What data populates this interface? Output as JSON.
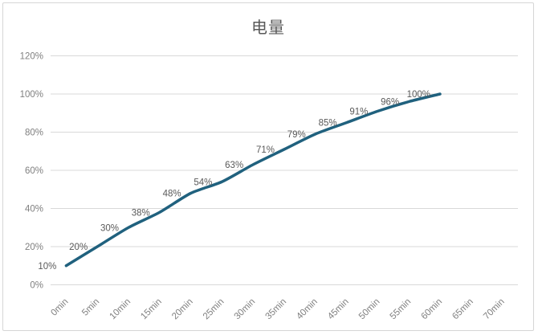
{
  "chart_data": {
    "type": "line",
    "title": "电量",
    "categories": [
      "0min",
      "5min",
      "10min",
      "15min",
      "20min",
      "25min",
      "30min",
      "35min",
      "40min",
      "45min",
      "50min",
      "55min",
      "60min",
      "65min",
      "70min"
    ],
    "series": [
      {
        "name": "电量",
        "values": [
          10,
          20,
          30,
          38,
          48,
          54,
          63,
          71,
          79,
          85,
          91,
          96,
          100
        ],
        "data_labels": [
          "10%",
          "20%",
          "30%",
          "38%",
          "48%",
          "54%",
          "63%",
          "71%",
          "79%",
          "85%",
          "91%",
          "96%",
          "100%"
        ]
      }
    ],
    "xlabel": "",
    "ylabel": "",
    "ylim": [
      0,
      120
    ],
    "y_ticks": [
      0,
      20,
      40,
      60,
      80,
      100,
      120
    ],
    "y_tick_labels": [
      "0%",
      "20%",
      "40%",
      "60%",
      "80%",
      "100%",
      "120%"
    ],
    "grid": true,
    "legend": "none",
    "data_label_position": "left",
    "colors": {
      "line": "#20617E",
      "gridline": "#D9D9D9",
      "tick_label": "#7F7F7F",
      "data_label": "#595959",
      "title": "#595959",
      "border": "#D6D6D6",
      "background": "#FFFFFF"
    }
  }
}
